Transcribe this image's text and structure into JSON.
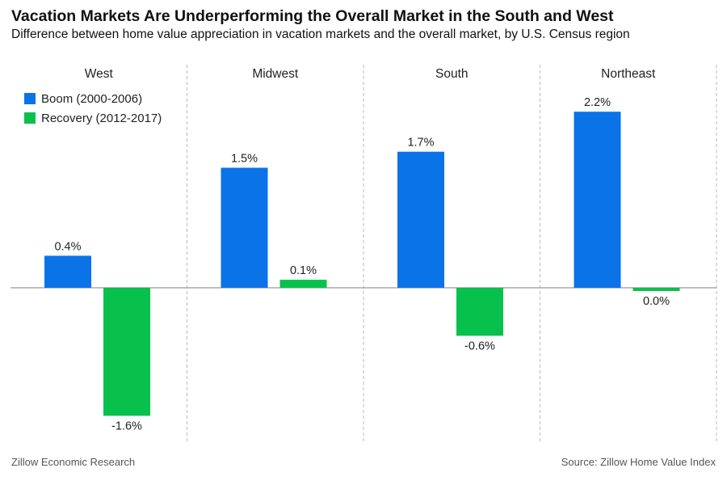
{
  "title": "Vacation Markets Are Underperforming the Overall Market in the South and West",
  "subtitle": "Difference between home value appreciation in vacation markets and the overall market, by U.S. Census region",
  "footer": {
    "left": "Zillow Economic Research",
    "right": "Source: Zillow Home Value Index"
  },
  "legend": [
    {
      "name": "Boom (2000-2006)",
      "color": "#0a73e8"
    },
    {
      "name": "Recovery (2012-2017)",
      "color": "#08c14c"
    }
  ],
  "chart_data": {
    "type": "bar",
    "panels": [
      "West",
      "Midwest",
      "South",
      "Northeast"
    ],
    "series": [
      {
        "name": "Boom (2000-2006)",
        "color": "#0a73e8",
        "values": [
          0.4,
          1.5,
          1.7,
          2.2
        ],
        "labels": [
          "0.4%",
          "1.5%",
          "1.7%",
          "2.2%"
        ]
      },
      {
        "name": "Recovery (2012-2017)",
        "color": "#08c14c",
        "values": [
          -1.6,
          0.1,
          -0.6,
          -0.04
        ],
        "labels": [
          "-1.6%",
          "0.1%",
          "-0.6%",
          "0.0%"
        ]
      }
    ],
    "ylim": [
      -1.8,
      2.4
    ],
    "legend_position": "top-left",
    "grid": false
  }
}
